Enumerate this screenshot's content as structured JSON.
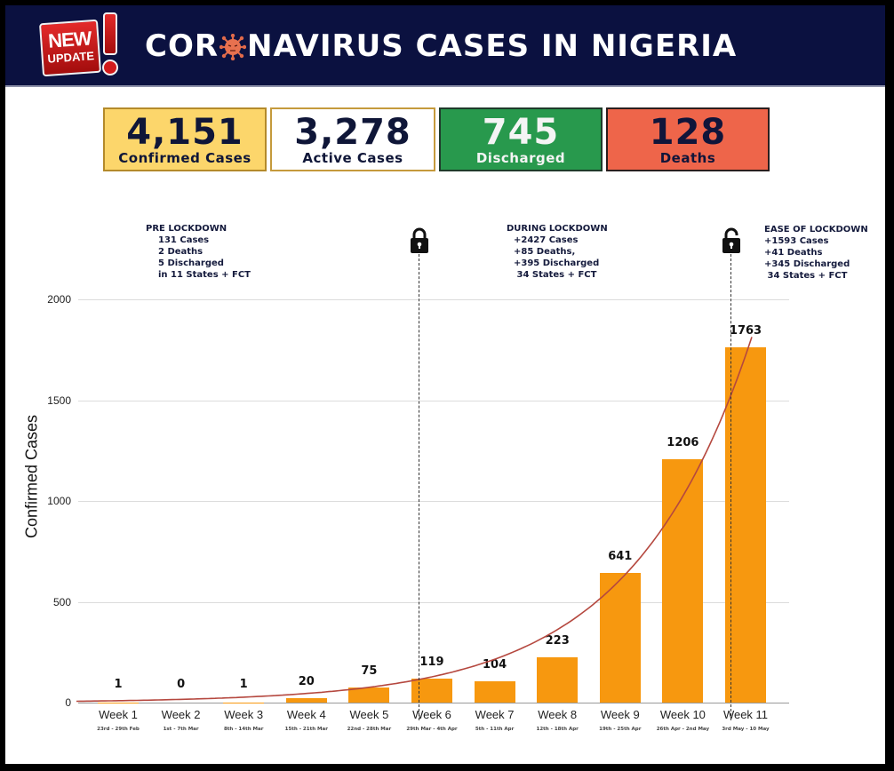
{
  "header": {
    "badge": {
      "line1": "NEW",
      "line2": "UPDATE",
      "mark": "!"
    },
    "title_before": "COR",
    "title_icon": "virus-icon",
    "title_after": "NAVIRUS CASES IN NIGERIA",
    "background_color": "#0b1140"
  },
  "stats": [
    {
      "value": "4,151",
      "label": "Confirmed Cases",
      "bg": "#fcd66b",
      "border": "#b48a2a",
      "color": "#0f1638"
    },
    {
      "value": "3,278",
      "label": "Active Cases",
      "bg": "#ffffff",
      "border": "#c59a3c",
      "color": "#0f1638"
    },
    {
      "value": "745",
      "label": "Discharged",
      "bg": "#28994d",
      "border": "#1f3a2a",
      "color": "#f4f4f4"
    },
    {
      "value": "128",
      "label": "Deaths",
      "bg": "#ee654a",
      "border": "#2a1e1e",
      "color": "#10153a"
    }
  ],
  "annotations": {
    "pre": {
      "title": "PRE LOCKDOWN",
      "lines": [
        "131 Cases",
        "2 Deaths",
        "5 Discharged",
        "in 11 States + FCT"
      ]
    },
    "during": {
      "title": "DURING LOCKDOWN",
      "lines": [
        "+2427 Cases",
        "+85 Deaths,",
        "+395 Discharged",
        " 34 States + FCT"
      ],
      "icon": "lock-closed-icon"
    },
    "ease": {
      "title": "EASE OF  LOCKDOWN",
      "lines": [
        "+1593 Cases",
        "+41 Deaths",
        "+345 Discharged",
        " 34 States + FCT"
      ],
      "icon": "lock-open-icon"
    }
  },
  "chart_data": {
    "type": "bar",
    "title": "CORONAVIRUS CASES IN NIGERIA",
    "xlabel": "",
    "ylabel": "Confirmed Cases",
    "ylim": [
      0,
      2000
    ],
    "yticks": [
      0,
      500,
      1000,
      1500,
      2000
    ],
    "grid": true,
    "categories": [
      "Week 1",
      "Week 2",
      "Week 3",
      "Week 4",
      "Week 5",
      "Week 6",
      "Week 7",
      "Week 8",
      "Week 9",
      "Week 10",
      "Week 11"
    ],
    "date_ranges": [
      "23rd - 29th Feb",
      "1st - 7th Mar",
      "8th - 14th Mar",
      "15th - 21th Mar",
      "22nd - 28th Mar",
      "29th Mar - 4th Apr",
      "5th - 11th Apr",
      "12th - 18th Apr",
      "19th - 25th Apr",
      "26th Apr - 2nd May",
      "3rd May - 10 May"
    ],
    "values": [
      1,
      0,
      1,
      20,
      75,
      119,
      104,
      223,
      641,
      1206,
      1763
    ],
    "bar_color": "#f7980f",
    "trendline": {
      "type": "exponential",
      "color": "#b5483f"
    },
    "markers": [
      {
        "label": "Lockdown start",
        "at_category": "Week 6",
        "icon": "lock-closed-icon"
      },
      {
        "label": "Ease of lockdown",
        "at_category": "Week 11",
        "icon": "lock-open-icon"
      }
    ]
  }
}
